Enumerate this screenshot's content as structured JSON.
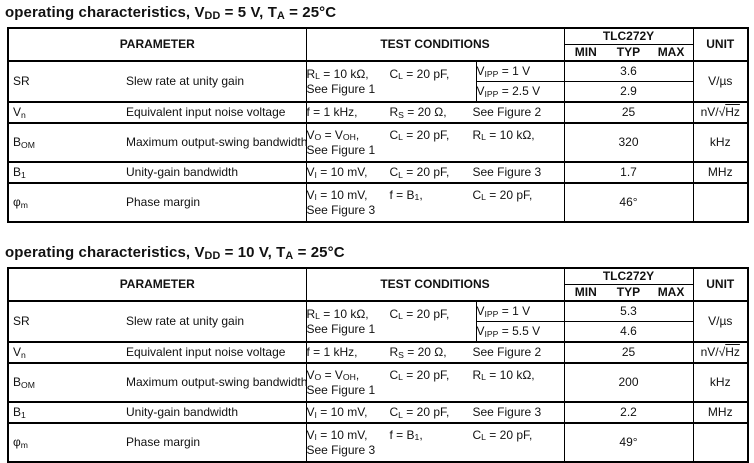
{
  "tables": [
    {
      "title": "operating characteristics, V~DD~ = 5 V, T~A~ = 25°C",
      "header": {
        "parameter": "PARAMETER",
        "test_conditions": "TEST CONDITIONS",
        "device": "TLC272Y",
        "min": "MIN",
        "typ": "TYP",
        "max": "MAX",
        "unit": "UNIT"
      },
      "rows": [
        {
          "symbol": "SR",
          "name": "Slew rate at unity gain",
          "c1": "R~L~ = 10 kΩ,",
          "c2": "C~L~ = 20 pF,",
          "fig": "See Figure 1",
          "sub0c": "V~IPP~ = 1 V",
          "sub0v": "3.6",
          "sub1c": "V~IPP~ = 2.5 V",
          "sub1v": "2.9",
          "unit": "V/µs"
        },
        {
          "symbol": "V~n~",
          "name": "Equivalent input noise voltage",
          "c1": "f = 1 kHz,",
          "c2": "R~S~ = 20 Ω,",
          "c3": "See Figure 2",
          "typ": "25",
          "unit": "nV/√^Hz^"
        },
        {
          "symbol": "B~OM~",
          "name": "Maximum output-swing bandwidth",
          "c1": "V~O~ = V~OH~,",
          "c2": "C~L~ = 20 pF,",
          "c3": "R~L~ = 10 kΩ,",
          "fig": "See Figure 1",
          "typ": "320",
          "unit": "kHz"
        },
        {
          "symbol": "B~1~",
          "name": "Unity-gain bandwidth",
          "c1": "V~I~ = 10 mV,",
          "c2": "C~L~ = 20 pF,",
          "c3": "See Figure 3",
          "typ": "1.7",
          "unit": "MHz"
        },
        {
          "symbol": "φ~m~",
          "name": "Phase margin",
          "c1": "V~I~ = 10 mV,",
          "c2": "f = B~1~,",
          "c3": "C~L~ = 20 pF,",
          "fig": "See Figure 3",
          "typ": "46°",
          "unit": ""
        }
      ]
    },
    {
      "title": "operating characteristics, V~DD~ = 10 V, T~A~ = 25°C",
      "header": {
        "parameter": "PARAMETER",
        "test_conditions": "TEST CONDITIONS",
        "device": "TLC272Y",
        "min": "MIN",
        "typ": "TYP",
        "max": "MAX",
        "unit": "UNIT"
      },
      "rows": [
        {
          "symbol": "SR",
          "name": "Slew rate at unity gain",
          "c1": "R~L~ = 10 kΩ,",
          "c2": "C~L~ = 20 pF,",
          "fig": "See Figure 1",
          "sub0c": "V~IPP~ = 1 V",
          "sub0v": "5.3",
          "sub1c": "V~IPP~ = 5.5 V",
          "sub1v": "4.6",
          "unit": "V/µs"
        },
        {
          "symbol": "V~n~",
          "name": "Equivalent input noise voltage",
          "c1": "f = 1 kHz,",
          "c2": "R~S~ = 20 Ω,",
          "c3": "See Figure 2",
          "typ": "25",
          "unit": "nV/√^Hz^"
        },
        {
          "symbol": "B~OM~",
          "name": "Maximum output-swing bandwidth",
          "c1": "V~O~ = V~OH~,",
          "c2": "C~L~ = 20 pF,",
          "c3": "R~L~ = 10 kΩ,",
          "fig": "See Figure 1",
          "typ": "200",
          "unit": "kHz"
        },
        {
          "symbol": "B~1~",
          "name": "Unity-gain bandwidth",
          "c1": "V~I~ = 10 mV,",
          "c2": "C~L~ = 20 pF,",
          "c3": "See Figure 3",
          "typ": "2.2",
          "unit": "MHz"
        },
        {
          "symbol": "φ~m~",
          "name": "Phase margin",
          "c1": "V~I~ = 10 mV,",
          "c2": "f = B~1~,",
          "c3": "C~L~ = 20 pF,",
          "fig": "See Figure 3",
          "typ": "49°",
          "unit": ""
        }
      ]
    }
  ]
}
